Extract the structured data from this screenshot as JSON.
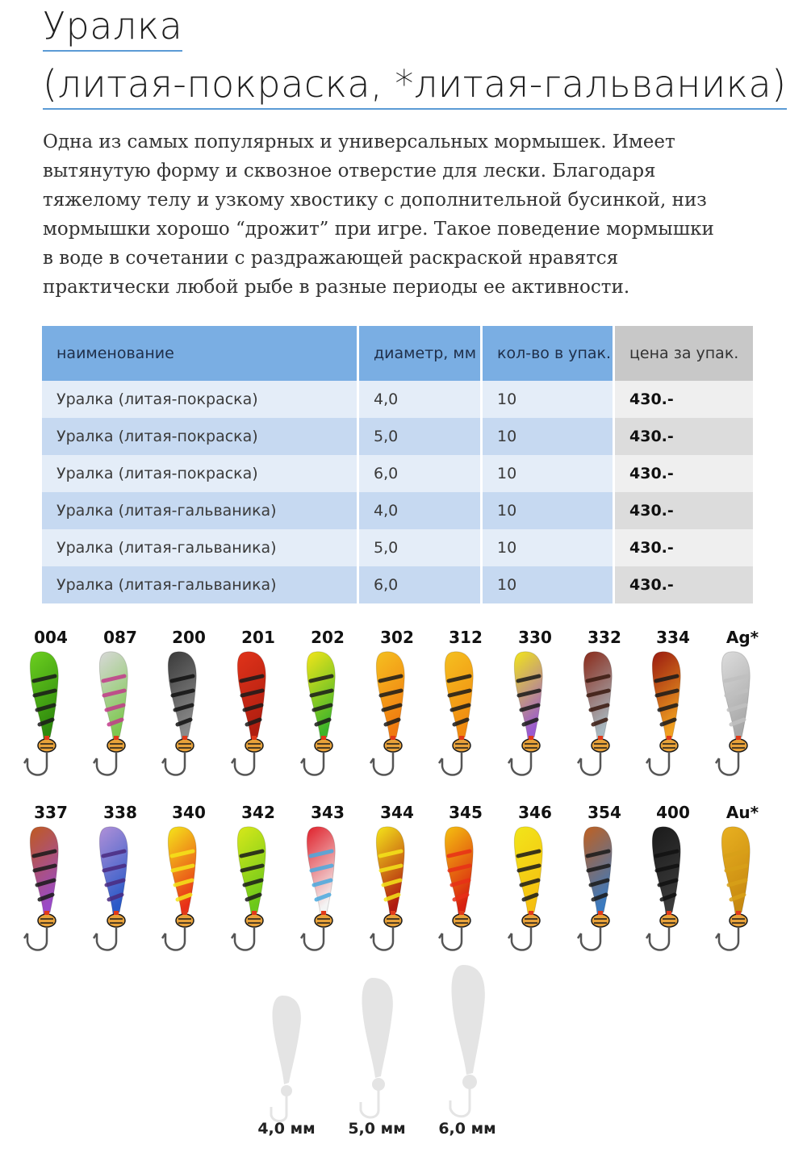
{
  "title": {
    "line1": "Уралка",
    "line2": "(литая-покраска, *литая-гальваника)"
  },
  "description": [
    "Одна из самых популярных и универсальных мормышек. Имеет",
    "вытянутую форму и сквозное отверстие для лески. Благодаря",
    "тяжелому телу и узкому хвостику  с дополнительной бусинкой, низ",
    "мормышки хорошо “дрожит” при игре. Такое поведение мормышки",
    "в воде в сочетании с  раздражающей раскраской нравятся",
    "практически любой рыбе в разные периоды ее активности."
  ],
  "table": {
    "headers": [
      "наименование",
      "диаметр, мм",
      "кол-во в упак.",
      "цена за упак."
    ],
    "rows": [
      [
        "Уралка (литая-покраска)",
        "4,0",
        "10",
        "430.-"
      ],
      [
        "Уралка (литая-покраска)",
        "5,0",
        "10",
        "430.-"
      ],
      [
        "Уралка (литая-покраска)",
        "6,0",
        "10",
        "430.-"
      ],
      [
        "Уралка (литая-гальваника)",
        "4,0",
        "10",
        "430.-"
      ],
      [
        "Уралка (литая-гальваника)",
        "5,0",
        "10",
        "430.-"
      ],
      [
        "Уралка (литая-гальваника)",
        "6,0",
        "10",
        "430.-"
      ]
    ]
  },
  "colors_row1": [
    {
      "code": "004",
      "c1": "#6ccf1f",
      "c2": "#2e8a0d",
      "stripe": "#1a1a1a"
    },
    {
      "code": "087",
      "c1": "#d8d8d8",
      "c2": "#7ec850",
      "stripe": "#c23a8a"
    },
    {
      "code": "200",
      "c1": "#3a3a3a",
      "c2": "#8a8a8a",
      "stripe": "#111111"
    },
    {
      "code": "201",
      "c1": "#e0331a",
      "c2": "#b01e10",
      "stripe": "#1a1a1a"
    },
    {
      "code": "202",
      "c1": "#f2e51a",
      "c2": "#3db52a",
      "stripe": "#1a1a1a"
    },
    {
      "code": "302",
      "c1": "#f5c020",
      "c2": "#f07a10",
      "stripe": "#1a1a1a"
    },
    {
      "code": "312",
      "c1": "#f5c020",
      "c2": "#f08a10",
      "stripe": "#1a1a1a"
    },
    {
      "code": "330",
      "c1": "#f2e51a",
      "c2": "#9a5ad0",
      "stripe": "#1a1a1a"
    },
    {
      "code": "332",
      "c1": "#8a2a1a",
      "c2": "#a8b8c0",
      "stripe": "#3a1a10"
    },
    {
      "code": "334",
      "c1": "#9a1a10",
      "c2": "#f0a020",
      "stripe": "#1a1a1a"
    },
    {
      "code": "Ag*",
      "c1": "#dcdcdc",
      "c2": "#a8a8a8",
      "stripe": "#c0c0c0"
    }
  ],
  "colors_row2": [
    {
      "code": "337",
      "c1": "#c05a20",
      "c2": "#9a4ac8",
      "stripe": "#1a1a1a"
    },
    {
      "code": "338",
      "c1": "#b090d8",
      "c2": "#2a5ac8",
      "stripe": "#4a2a80"
    },
    {
      "code": "340",
      "c1": "#f5e51a",
      "c2": "#e83018",
      "stripe": "#f5e51a"
    },
    {
      "code": "342",
      "c1": "#d8e81a",
      "c2": "#6ac81a",
      "stripe": "#1a1a1a"
    },
    {
      "code": "343",
      "c1": "#e0202a",
      "c2": "#f4f4f4",
      "stripe": "#4aaae0"
    },
    {
      "code": "344",
      "c1": "#f5e51a",
      "c2": "#b01a10",
      "stripe": "#f5e51a"
    },
    {
      "code": "345",
      "c1": "#f5c010",
      "c2": "#d82010",
      "stripe": "#e83018"
    },
    {
      "code": "346",
      "c1": "#f2e51a",
      "c2": "#f5c010",
      "stripe": "#1a1a1a"
    },
    {
      "code": "354",
      "c1": "#c06020",
      "c2": "#3a7ac0",
      "stripe": "#1a1a1a"
    },
    {
      "code": "400",
      "c1": "#1a1a1a",
      "c2": "#3a3a3a",
      "stripe": "#111111"
    },
    {
      "code": "Au*",
      "c1": "#e8b020",
      "c2": "#c88a10",
      "stripe": "#d8a018"
    }
  ],
  "sizes": [
    "4,0 мм",
    "5,0 мм",
    "6,0 мм"
  ]
}
